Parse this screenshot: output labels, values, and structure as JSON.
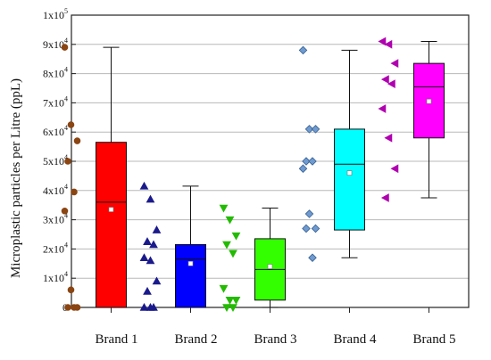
{
  "chart_data": {
    "type": "box",
    "ylabel": "Microplastic particles per Litre (ppL)",
    "ylim": [
      0,
      100000
    ],
    "y_ticks": [
      0,
      10000,
      20000,
      30000,
      40000,
      50000,
      60000,
      70000,
      80000,
      90000,
      100000
    ],
    "y_tick_labels": [
      {
        "base": "0",
        "exp": ""
      },
      {
        "base": "1x10",
        "exp": "4"
      },
      {
        "base": "2x10",
        "exp": "4"
      },
      {
        "base": "3x10",
        "exp": "4"
      },
      {
        "base": "4x10",
        "exp": "4"
      },
      {
        "base": "5x10",
        "exp": "4"
      },
      {
        "base": "6x10",
        "exp": "4"
      },
      {
        "base": "7x10",
        "exp": "4"
      },
      {
        "base": "8x10",
        "exp": "4"
      },
      {
        "base": "9x10",
        "exp": "4"
      },
      {
        "base": "1x10",
        "exp": "5"
      }
    ],
    "grid": true,
    "categories": [
      "Brand 1",
      "Brand 2",
      "Brand 3",
      "Brand 4",
      "Brand 5"
    ],
    "series": [
      {
        "category": "Brand 1",
        "color": "#ff0000",
        "marker": "circle",
        "marker_color": "#8b4513",
        "box": {
          "whisker_low": 0,
          "q1": 0,
          "median": 36000,
          "q3": 56500,
          "whisker_high": 89000,
          "mean": 33500
        },
        "points": [
          89000,
          62500,
          57000,
          50000,
          39500,
          33000,
          6000,
          0,
          0,
          0
        ]
      },
      {
        "category": "Brand 2",
        "color": "#0000ff",
        "marker": "triangle-up",
        "marker_color": "#1a1a8c",
        "box": {
          "whisker_low": 0,
          "q1": 0,
          "median": 16500,
          "q3": 21500,
          "whisker_high": 41500,
          "mean": 15000
        },
        "points": [
          41500,
          37000,
          26500,
          22500,
          21500,
          17000,
          16000,
          9000,
          5500,
          0,
          0,
          0
        ]
      },
      {
        "category": "Brand 3",
        "color": "#33ff00",
        "marker": "triangle-down",
        "marker_color": "#22bb00",
        "box": {
          "whisker_low": 0,
          "q1": 2500,
          "median": 13000,
          "q3": 23500,
          "whisker_high": 34000,
          "mean": 14000
        },
        "points": [
          34000,
          30000,
          24500,
          21500,
          18500,
          6500,
          2500,
          2500,
          0,
          0
        ]
      },
      {
        "category": "Brand 4",
        "color": "#00ffff",
        "marker": "diamond",
        "marker_color": "#6f9bd1",
        "box": {
          "whisker_low": 17000,
          "q1": 26500,
          "median": 49000,
          "q3": 61000,
          "whisker_high": 88000,
          "mean": 46000
        },
        "points": [
          88000,
          61000,
          61000,
          50000,
          50000,
          47500,
          32000,
          27000,
          27000,
          17000
        ]
      },
      {
        "category": "Brand 5",
        "color": "#ff00ff",
        "marker": "triangle-left",
        "marker_color": "#b000b0",
        "box": {
          "whisker_low": 37500,
          "q1": 58000,
          "median": 75500,
          "q3": 83500,
          "whisker_high": 91000,
          "mean": 70500
        },
        "points": [
          91000,
          90000,
          83500,
          78000,
          76500,
          68000,
          58000,
          47500,
          37500
        ]
      }
    ]
  }
}
